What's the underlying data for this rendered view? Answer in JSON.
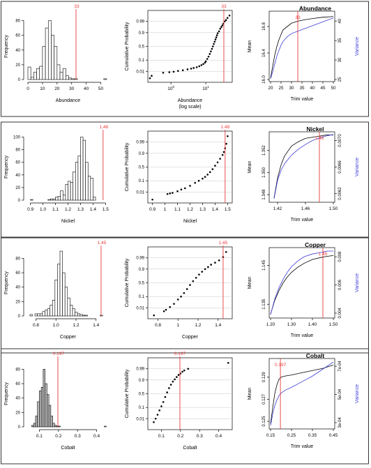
{
  "figure": {
    "border_color": "#333333",
    "bar_fill": "#ffffff",
    "dark_bar_fill": "#bdbdbd",
    "stroke": "#000000",
    "marker_color": "#e8393a",
    "mean_line_color": "#000000",
    "variance_line_color": "#3b3bd6"
  },
  "chart_data": [
    {
      "type": "bar",
      "element": "Abundance",
      "panel": "histogram",
      "xlabel": "Abundance",
      "ylabel": "Frequency",
      "xlim": [
        0,
        55
      ],
      "ylim": [
        0,
        90
      ],
      "xticks": [
        "0",
        "10",
        "20",
        "30",
        "40",
        "50"
      ],
      "yticks": [
        "0",
        "20",
        "40",
        "60",
        "80"
      ],
      "bin_start": 0,
      "bin_width": 2,
      "values": [
        17,
        3,
        10,
        15,
        18,
        45,
        70,
        80,
        60,
        45,
        20,
        10,
        15,
        5,
        2,
        1,
        1,
        0,
        0,
        0,
        0,
        0,
        0,
        0,
        0,
        0,
        1
      ],
      "marker": {
        "value": 33,
        "label": "33"
      },
      "grid": false
    },
    {
      "type": "scatter",
      "element": "Abundance",
      "panel": "cumulative-probability",
      "xlabel": "Abundance",
      "xlabel2": "(log scale)",
      "ylabel": "Cumulative Probability",
      "x_scale": "log",
      "xlim": [
        0.25,
        50
      ],
      "xticks": [
        {
          "value": 1,
          "base": "10",
          "exp": "0"
        },
        {
          "value": 10,
          "base": "10",
          "exp": "1"
        }
      ],
      "yticks": [
        "0.01",
        "0.1",
        "0.5",
        "0.9",
        "0.99"
      ],
      "y_scale": "probability",
      "x": [
        0.25,
        0.28,
        0.6,
        0.9,
        1.2,
        1.6,
        2.2,
        3,
        3.8,
        4.5,
        5.5,
        6.5,
        7.5,
        8.5,
        9.5,
        10,
        11,
        12,
        13,
        14,
        15,
        16,
        17,
        18,
        19,
        20,
        21,
        22,
        24,
        26,
        28,
        30,
        32,
        35,
        38,
        42,
        48
      ],
      "p": [
        0.0015,
        0.003,
        0.007,
        0.008,
        0.009,
        0.011,
        0.013,
        0.016,
        0.019,
        0.022,
        0.026,
        0.032,
        0.04,
        0.05,
        0.065,
        0.08,
        0.12,
        0.17,
        0.24,
        0.32,
        0.41,
        0.5,
        0.59,
        0.67,
        0.74,
        0.8,
        0.85,
        0.89,
        0.92,
        0.95,
        0.965,
        0.975,
        0.983,
        0.99,
        0.993,
        0.996,
        0.998
      ],
      "marker": {
        "value": 33,
        "label": "33"
      },
      "gridlines_y": true
    },
    {
      "type": "line",
      "element": "Abundance",
      "panel": "trim",
      "title": "Abundance",
      "xlabel": "Trim value",
      "ylabel": "Mean",
      "ylabel2": "Variance",
      "xlim": [
        20,
        50
      ],
      "xticks": [
        "20",
        "25",
        "30",
        "35",
        "40",
        "45",
        "50"
      ],
      "y_mean_lim": [
        16.0,
        17.0
      ],
      "y_mean_ticks": [
        "16.0",
        "16.4",
        "16.8"
      ],
      "y_var_lim": [
        25,
        42
      ],
      "y_var_ticks": [
        "25",
        "30",
        "35",
        "40"
      ],
      "x": [
        20,
        21,
        22,
        23,
        24,
        25,
        26,
        28,
        30,
        33,
        36,
        40,
        45,
        50
      ],
      "series": [
        {
          "name": "Mean",
          "axis": "left",
          "values": [
            16.02,
            16.2,
            16.37,
            16.5,
            16.6,
            16.68,
            16.75,
            16.8,
            16.85,
            16.88,
            16.9,
            16.92,
            16.94,
            16.95
          ]
        },
        {
          "name": "Variance",
          "axis": "right",
          "values": [
            25.2,
            27,
            29,
            31,
            32.5,
            33.8,
            34.8,
            36,
            36.8,
            37.4,
            38,
            38.8,
            39.8,
            40.8
          ]
        }
      ],
      "marker": {
        "value": 33,
        "label": "33"
      }
    },
    {
      "type": "bar",
      "element": "Nickel",
      "panel": "histogram",
      "xlabel": "Nickel",
      "ylabel": "Frequency",
      "xlim": [
        0.88,
        1.52
      ],
      "ylim": [
        0,
        105
      ],
      "xticks": [
        "0.9",
        "1.0",
        "1.1",
        "1.2",
        "1.3",
        "1.4",
        "1.5"
      ],
      "yticks": [
        "0",
        "20",
        "40",
        "60",
        "80",
        "100"
      ],
      "bin_start": 0.9,
      "bin_width": 0.02,
      "values": [
        1,
        0,
        0,
        0,
        0,
        0,
        0,
        1,
        2,
        2,
        5,
        6,
        15,
        8,
        25,
        30,
        28,
        45,
        60,
        70,
        100,
        95,
        60,
        38,
        35,
        5
      ],
      "marker": {
        "value": 1.48,
        "label": "1.48"
      },
      "grid": false
    },
    {
      "type": "scatter",
      "element": "Nickel",
      "panel": "cumulative-probability",
      "xlabel": "Nickel",
      "ylabel": "Cumulative Probability",
      "x_scale": "linear",
      "xlim": [
        0.88,
        1.52
      ],
      "xticks": [
        "0.9",
        "1",
        "1.1",
        "1.2",
        "1.3",
        "1.4",
        "1.5"
      ],
      "yticks": [
        "0.01",
        "0.1",
        "0.5",
        "0.9",
        "0.99"
      ],
      "y_scale": "probability",
      "x": [
        0.9,
        1.02,
        1.04,
        1.06,
        1.1,
        1.13,
        1.16,
        1.2,
        1.24,
        1.27,
        1.3,
        1.32,
        1.34,
        1.36,
        1.38,
        1.4,
        1.42,
        1.44,
        1.46,
        1.47,
        1.48,
        1.49,
        1.5
      ],
      "p": [
        0.0012,
        0.006,
        0.007,
        0.008,
        0.012,
        0.018,
        0.024,
        0.04,
        0.07,
        0.1,
        0.14,
        0.18,
        0.24,
        0.32,
        0.42,
        0.55,
        0.67,
        0.78,
        0.87,
        0.92,
        0.96,
        0.985,
        0.998
      ],
      "marker": {
        "value": 1.48,
        "label": "1.48"
      },
      "gridlines_y": true
    },
    {
      "type": "line",
      "element": "Nickel",
      "panel": "trim",
      "title": "Nickel",
      "xlabel": "Trim value",
      "ylabel": "Mean",
      "ylabel2": "Variance",
      "xlim": [
        1.41,
        1.5
      ],
      "xticks": [
        "1.42",
        "1.46",
        "1.50"
      ],
      "y_mean_lim": [
        1.3475,
        1.3535
      ],
      "y_mean_ticks": [
        "1.348",
        "1.350",
        "1.352"
      ],
      "y_var_lim": [
        0.0061,
        0.0071
      ],
      "y_var_ticks": [
        "0.0062",
        "0.0066",
        "0.0070"
      ],
      "x": [
        1.415,
        1.42,
        1.425,
        1.43,
        1.44,
        1.45,
        1.46,
        1.47,
        1.48,
        1.49,
        1.5
      ],
      "series": [
        {
          "name": "Mean",
          "axis": "left",
          "values": [
            1.3477,
            1.3495,
            1.3507,
            1.3515,
            1.3524,
            1.3528,
            1.3531,
            1.3532,
            1.3533,
            1.3534,
            1.3534
          ]
        },
        {
          "name": "Variance",
          "axis": "right",
          "values": [
            0.00612,
            0.0064,
            0.00655,
            0.00665,
            0.00678,
            0.00687,
            0.00694,
            0.007,
            0.00704,
            0.00707,
            0.00709
          ]
        }
      ],
      "marker": {
        "value": 1.48,
        "label": "1.48"
      }
    },
    {
      "type": "bar",
      "element": "Copper",
      "panel": "histogram",
      "xlabel": "Copper",
      "ylabel": "Frequency",
      "xlim": [
        0.72,
        1.52
      ],
      "ylim": [
        0,
        92
      ],
      "xticks": [
        "0.8",
        "1.0",
        "1.2",
        "1.4"
      ],
      "yticks": [
        "0",
        "20",
        "40",
        "60",
        "80"
      ],
      "bin_start": 0.74,
      "bin_width": 0.025,
      "values": [
        2,
        0,
        3,
        3,
        3,
        6,
        8,
        10,
        15,
        22,
        50,
        72,
        90,
        60,
        40,
        25,
        15,
        10,
        5,
        3,
        2,
        1,
        1,
        0,
        0,
        0,
        0,
        0,
        1
      ],
      "marker": {
        "value": 1.45,
        "label": "1.45"
      },
      "grid": false
    },
    {
      "type": "scatter",
      "element": "Copper",
      "panel": "cumulative-probability",
      "xlabel": "Copper",
      "ylabel": "Cumulative Probability",
      "x_scale": "linear",
      "xlim": [
        0.72,
        1.52
      ],
      "xticks": [
        "0.8",
        "1",
        "1.2",
        "1.4"
      ],
      "yticks": [
        "0.01",
        "0.1",
        "0.5",
        "0.9",
        "0.99"
      ],
      "y_scale": "probability",
      "x": [
        0.76,
        0.86,
        0.88,
        0.92,
        0.96,
        1.0,
        1.03,
        1.06,
        1.09,
        1.12,
        1.15,
        1.18,
        1.21,
        1.24,
        1.27,
        1.3,
        1.33,
        1.37,
        1.41,
        1.45,
        1.48
      ],
      "p": [
        0.0012,
        0.004,
        0.006,
        0.012,
        0.025,
        0.06,
        0.1,
        0.17,
        0.28,
        0.42,
        0.56,
        0.68,
        0.78,
        0.85,
        0.9,
        0.93,
        0.955,
        0.97,
        0.982,
        0.992,
        0.998
      ],
      "marker": {
        "value": 1.45,
        "label": "1.45"
      },
      "gridlines_y": true
    },
    {
      "type": "line",
      "element": "Copper",
      "panel": "trim",
      "title": "Copper",
      "xlabel": "Trim value",
      "ylabel": "Mean",
      "ylabel2": "Variance",
      "xlim": [
        1.2,
        1.5
      ],
      "xticks": [
        "1.20",
        "1.30",
        "1.40",
        "1.50"
      ],
      "y_mean_lim": [
        1.132,
        1.149
      ],
      "y_mean_ticks": [
        "1.135",
        "1.145"
      ],
      "y_var_lim": [
        0.0038,
        0.0085
      ],
      "y_var_ticks": [
        "0.004",
        "0.006",
        "0.008"
      ],
      "x": [
        1.2,
        1.22,
        1.24,
        1.26,
        1.28,
        1.3,
        1.33,
        1.36,
        1.4,
        1.44,
        1.47,
        1.5
      ],
      "series": [
        {
          "name": "Mean",
          "axis": "left",
          "values": [
            1.1325,
            1.136,
            1.1385,
            1.1405,
            1.142,
            1.1432,
            1.1445,
            1.1455,
            1.1465,
            1.147,
            1.1473,
            1.1475
          ]
        },
        {
          "name": "Variance",
          "axis": "right",
          "values": [
            0.0039,
            0.005,
            0.0058,
            0.0064,
            0.0069,
            0.0073,
            0.0077,
            0.008,
            0.0082,
            0.0083,
            0.0084,
            0.0084
          ]
        }
      ],
      "marker": {
        "value": 1.45,
        "label": "1.45"
      }
    },
    {
      "type": "bar",
      "element": "Cobalt",
      "panel": "histogram",
      "xlabel": "Cobalt",
      "ylabel": "Frequency",
      "xlim": [
        0.04,
        0.46
      ],
      "ylim": [
        0,
        92
      ],
      "xticks": [
        "0.1",
        "0.2",
        "0.3",
        "0.4"
      ],
      "yticks": [
        "0",
        "20",
        "40",
        "60",
        "80"
      ],
      "bin_start": 0.06,
      "bin_width": 0.01,
      "values": [
        2,
        5,
        15,
        35,
        50,
        55,
        80,
        60,
        45,
        30,
        15,
        5,
        2,
        1,
        1,
        0,
        0,
        0,
        0,
        0,
        0,
        0,
        0,
        0,
        0,
        0,
        0,
        0,
        0,
        0,
        0,
        0,
        0,
        0,
        0,
        0,
        0,
        0,
        1
      ],
      "marker": {
        "value": 0.197,
        "label": "0.197"
      },
      "grid": false
    },
    {
      "type": "scatter",
      "element": "Cobalt",
      "panel": "cumulative-probability",
      "xlabel": "Cobalt",
      "ylabel": "Cumulative Probability",
      "x_scale": "linear",
      "xlim": [
        0.04,
        0.46
      ],
      "xticks": [
        "0.1",
        "0.2",
        "0.3",
        "0.4"
      ],
      "yticks": [
        "0.01",
        "0.1",
        "0.5",
        "0.9",
        "0.99"
      ],
      "y_scale": "probability",
      "x": [
        0.06,
        0.07,
        0.08,
        0.09,
        0.1,
        0.11,
        0.12,
        0.13,
        0.14,
        0.15,
        0.16,
        0.17,
        0.18,
        0.19,
        0.2,
        0.21,
        0.22,
        0.24,
        0.45
      ],
      "p": [
        0.004,
        0.01,
        0.025,
        0.06,
        0.12,
        0.22,
        0.38,
        0.55,
        0.7,
        0.8,
        0.87,
        0.91,
        0.94,
        0.96,
        0.97,
        0.98,
        0.985,
        0.99,
        0.998
      ],
      "marker": {
        "value": 0.197,
        "label": "0.197"
      },
      "gridlines_y": true
    },
    {
      "type": "line",
      "element": "Cobalt",
      "panel": "trim",
      "title": "Cobalt",
      "xlabel": "Trim value",
      "ylabel": "Mean",
      "ylabel2": "Variance",
      "xlim": [
        0.15,
        0.45
      ],
      "xticks": [
        "0.15",
        "0.25",
        "0.35",
        "0.45"
      ],
      "y_mean_lim": [
        0.1245,
        0.1305
      ],
      "y_mean_ticks": [
        "0.125",
        "0.127",
        "0.129"
      ],
      "y_var_lim": [
        0.00027,
        0.00074
      ],
      "y_var_ticks": [
        "3e-04",
        "5e-04",
        "7e-04"
      ],
      "x": [
        0.15,
        0.16,
        0.17,
        0.18,
        0.19,
        0.2,
        0.22,
        0.25,
        0.3,
        0.35,
        0.4,
        0.45
      ],
      "series": [
        {
          "name": "Mean",
          "axis": "left",
          "values": [
            0.1248,
            0.1262,
            0.1275,
            0.1283,
            0.1288,
            0.129,
            0.1291,
            0.1292,
            0.1294,
            0.1296,
            0.1298,
            0.1301
          ]
        },
        {
          "name": "Variance",
          "axis": "right",
          "values": [
            0.00028,
            0.00036,
            0.00042,
            0.00046,
            0.00049,
            0.00051,
            0.00053,
            0.00055,
            0.00059,
            0.00063,
            0.00068,
            0.00073
          ]
        }
      ],
      "marker": {
        "value": 0.197,
        "label": "0.197"
      }
    }
  ]
}
